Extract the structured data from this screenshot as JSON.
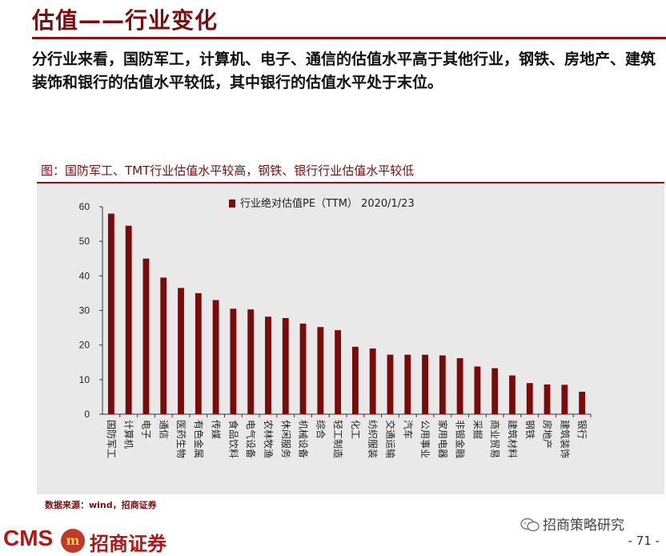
{
  "page": {
    "title": "估值——行业变化",
    "summary": "分行业来看，国防军工，计算机、电子、通信的估值水平高于其他行业，钢铁、房地产、建筑装饰和银行的估值水平较低，其中银行的估值水平处于末位。",
    "figure_title": "图：国防军工、TMT行业估值水平较高，钢铁、银行行业估值水平较低",
    "source": "数据来源：wind，招商证券",
    "brand_en": "CMS",
    "brand_cn": "招商证券",
    "wechat": "招商策略研究",
    "page_number": "- 71 -"
  },
  "colors": {
    "accent": "#7b0d0d",
    "bar": "#7a0b0b",
    "panel": "#e9e9e9"
  },
  "chart_data": {
    "type": "bar",
    "categories": [
      "国防军工",
      "计算机",
      "电子",
      "通信",
      "医药生物",
      "有色金属",
      "传媒",
      "食品饮料",
      "电气设备",
      "农林牧渔",
      "休闲服务",
      "机械设备",
      "综合",
      "轻工制造",
      "化工",
      "纺织服装",
      "交通运输",
      "汽车",
      "公用事业",
      "家用电器",
      "非银金融",
      "采掘",
      "商业贸易",
      "建筑材料",
      "钢铁",
      "房地产",
      "建筑装饰",
      "银行"
    ],
    "series": [
      {
        "name": "行业绝对估值PE（TTM）  2020/1/23",
        "values": [
          58.0,
          54.5,
          45.0,
          39.5,
          36.5,
          35.0,
          33.0,
          30.5,
          30.3,
          28.2,
          27.8,
          26.2,
          25.2,
          24.3,
          19.5,
          19.0,
          17.2,
          17.2,
          17.2,
          17.0,
          16.2,
          13.8,
          13.3,
          11.2,
          9.0,
          8.6,
          8.5,
          6.5
        ]
      }
    ],
    "yticks": [
      0,
      10,
      20,
      30,
      40,
      50,
      60
    ],
    "ylim": [
      0,
      60
    ],
    "grid": false,
    "legend": "top-center"
  }
}
